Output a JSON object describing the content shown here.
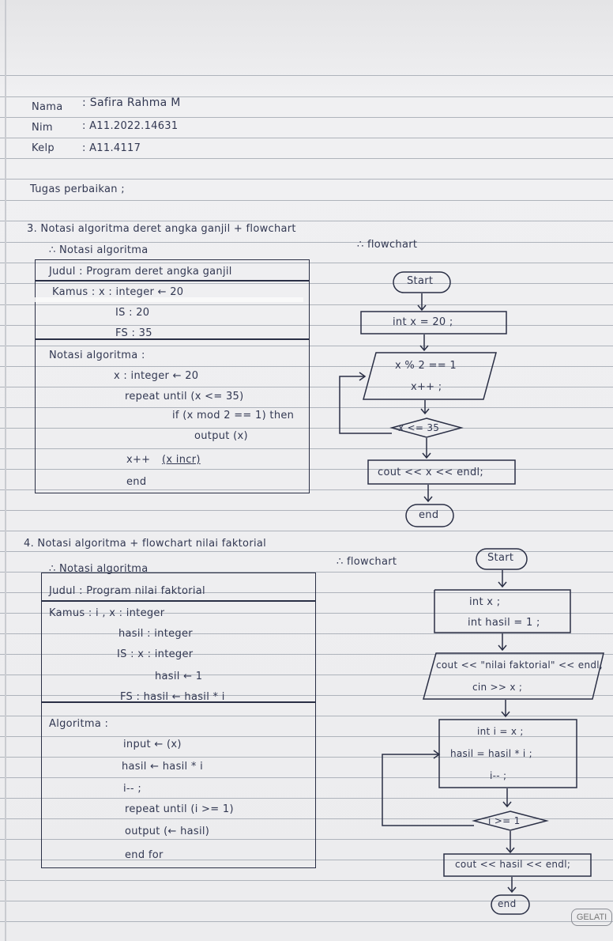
{
  "header": {
    "nama_label": "Nama",
    "nama_value": ": Safira Rahma M",
    "nim_label": "Nim",
    "nim_value": ": A11.2022.14631",
    "kelp_label": "Kelp",
    "kelp_value": ": A11.4117",
    "tugas": "Tugas perbaikan ;"
  },
  "section3": {
    "title": "3. Notasi algoritma deret angka ganjil + flowchart",
    "notasi_heading": "∴ Notasi algoritma",
    "flowchart_heading": "∴ flowchart",
    "table": {
      "judul": "Judul  : Program deret angka ganjil",
      "kamus_row1": "Kamus :  x  : integer ← 20",
      "kamus_row2": "IS  : 20",
      "kamus_row3": "FS  : 35",
      "notasi_label": "Notasi algoritma :",
      "line1": "x  : integer ← 20",
      "line2": "repeat until (x <= 35)",
      "line3": "if (x mod 2 == 1) then",
      "line4": "output (x)",
      "line5": "x++",
      "line5_note": "(x incr)",
      "line6": "end"
    },
    "flow": {
      "start": "Start",
      "init": "int x = 20 ;",
      "io_line1": "x % 2 == 1",
      "io_line2": "x++ ;",
      "decision": "x <= 35",
      "output": "cout << x << endl;",
      "end": "end"
    }
  },
  "section4": {
    "title": "4. Notasi algoritma + flowchart nilai faktorial",
    "notasi_heading": "∴ Notasi algoritma",
    "flowchart_heading": "∴ flowchart",
    "table": {
      "judul": "Judul  : Program nilai faktorial",
      "kamus_row1": "Kamus  :  i , x   : integer",
      "kamus_row2": "hasil : integer",
      "kamus_row3": "IS   :  x  : integer",
      "kamus_row4": "hasil ← 1",
      "kamus_row5": "FS : hasil ← hasil * i",
      "algoritma_label": "Algoritma :",
      "line1": "input ← (x)",
      "line2": "hasil ← hasil * i",
      "line3": "i-- ;",
      "line4": "repeat until (i >= 1)",
      "line5": "output (← hasil)",
      "line6": "end for"
    },
    "flow": {
      "start": "Start",
      "init_line1": "int x ;",
      "init_line2": "int hasil = 1 ;",
      "io_line1": "cout << \"nilai faktorial\" << endl;",
      "io_line2": "cin >> x ;",
      "proc_line1": "int i = x ;",
      "proc_line2": "hasil = hasil * i ;",
      "proc_line3": "i-- ;",
      "decision": "i >= 1",
      "output": "cout << hasil << endl;",
      "end": "end"
    }
  },
  "stamp": "GELATI"
}
